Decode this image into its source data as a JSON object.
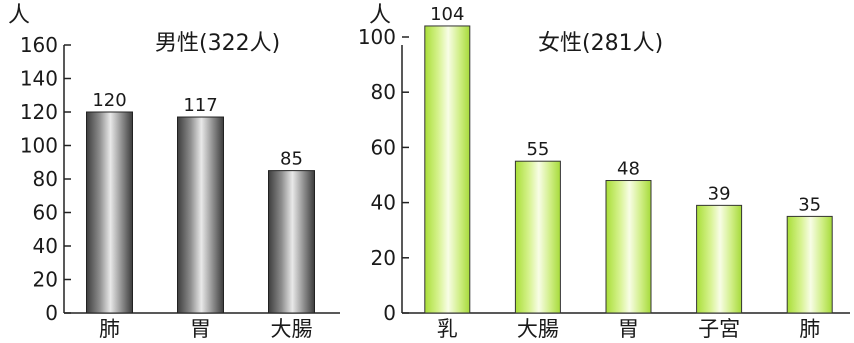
{
  "chart_data": [
    {
      "type": "bar",
      "title": "男性(322人)",
      "ylabel": "人",
      "categories": [
        "肺",
        "胃",
        "大腸"
      ],
      "values": [
        120,
        117,
        85
      ],
      "ylim": [
        0,
        160
      ],
      "yticks": [
        "0",
        "20",
        "40",
        "60",
        "80",
        "100",
        "120",
        "140",
        "160"
      ],
      "value_labels": [
        "120",
        "117",
        "85"
      ],
      "bar_color": "#8a8a8a",
      "grid": false
    },
    {
      "type": "bar",
      "title": "女性(281人)",
      "ylabel": "人",
      "categories": [
        "乳",
        "大腸",
        "胃",
        "子宮",
        "肺"
      ],
      "values": [
        104,
        55,
        48,
        39,
        35
      ],
      "ylim": [
        0,
        100
      ],
      "yticks": [
        "0",
        "20",
        "40",
        "60",
        "80",
        "100"
      ],
      "value_labels": [
        "104",
        "55",
        "48",
        "39",
        "35"
      ],
      "bar_color": "#c6ec73",
      "grid": false
    }
  ]
}
